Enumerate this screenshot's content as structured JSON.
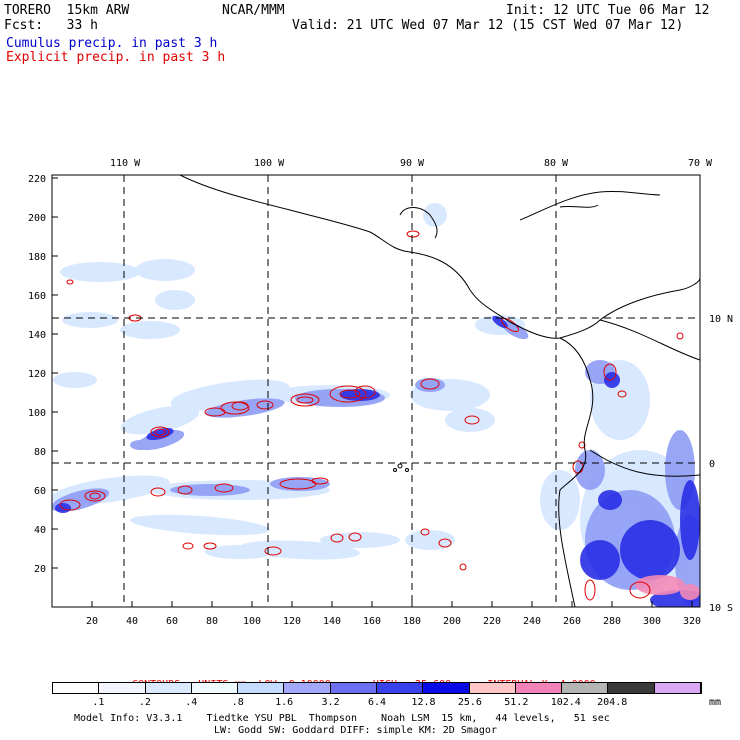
{
  "header": {
    "model": "TORERO  15km ARW",
    "org": "NCAR/MMM",
    "init": "Init: 12 UTC Tue 06 Mar 12",
    "fcst": "Fcst:   33 h",
    "valid": "Valid: 21 UTC Wed 07 Mar 12 (15 CST Wed 07 Mar 12)",
    "legend_cumulus": "Cumulus precip. in past 3 h",
    "legend_explicit": "Explicit precip. in past 3 h"
  },
  "colors": {
    "cumulus_text": "#0000cc",
    "explicit_text": "#e00000",
    "coast": "#000000",
    "contour": "#e00000"
  },
  "axes": {
    "lon_labels": [
      "110 W",
      "100 W",
      "90 W",
      "80 W",
      "70 W"
    ],
    "lat_labels": [
      "10 N",
      "0",
      "10 S"
    ],
    "x_ticks": [
      "20",
      "40",
      "60",
      "80",
      "100",
      "120",
      "140",
      "160",
      "180",
      "200",
      "220",
      "240",
      "260",
      "280",
      "300",
      "320"
    ],
    "y_ticks": [
      "20",
      "40",
      "60",
      "80",
      "100",
      "120",
      "140",
      "160",
      "180",
      "200",
      "220"
    ]
  },
  "contours_line": {
    "prefix": "CONTOURS:  UNITS=mm  LOW= 0.10000",
    "high": "HIGH=  25.600",
    "interval": "INTERVAL=X  4.0000"
  },
  "colorbar": {
    "unit": "mm",
    "labels": [
      ".1",
      ".2",
      ".4",
      ".8",
      "1.6",
      "3.2",
      "6.4",
      "12.8",
      "25.6",
      "51.2",
      "102.4",
      "204.8"
    ],
    "colors": [
      "#ffffff",
      "#f4f6ff",
      "#dbe9ff",
      "#eefcff",
      "#c4dcff",
      "#a3a8f8",
      "#6b6ff0",
      "#3a40ea",
      "#0a0ae6",
      "#ffc8c8",
      "#f283b8",
      "#b4b4b4",
      "#3a3a3a",
      "#d9a8f6"
    ]
  },
  "footer": {
    "line1": "Model Info: V3.3.1    Tiedtke YSU PBL  Thompson    Noah LSM  15 km,   44 levels,   51 sec",
    "line2": "LW: Godd SW: Goddard DIFF: simple KM: 2D Smagor"
  }
}
